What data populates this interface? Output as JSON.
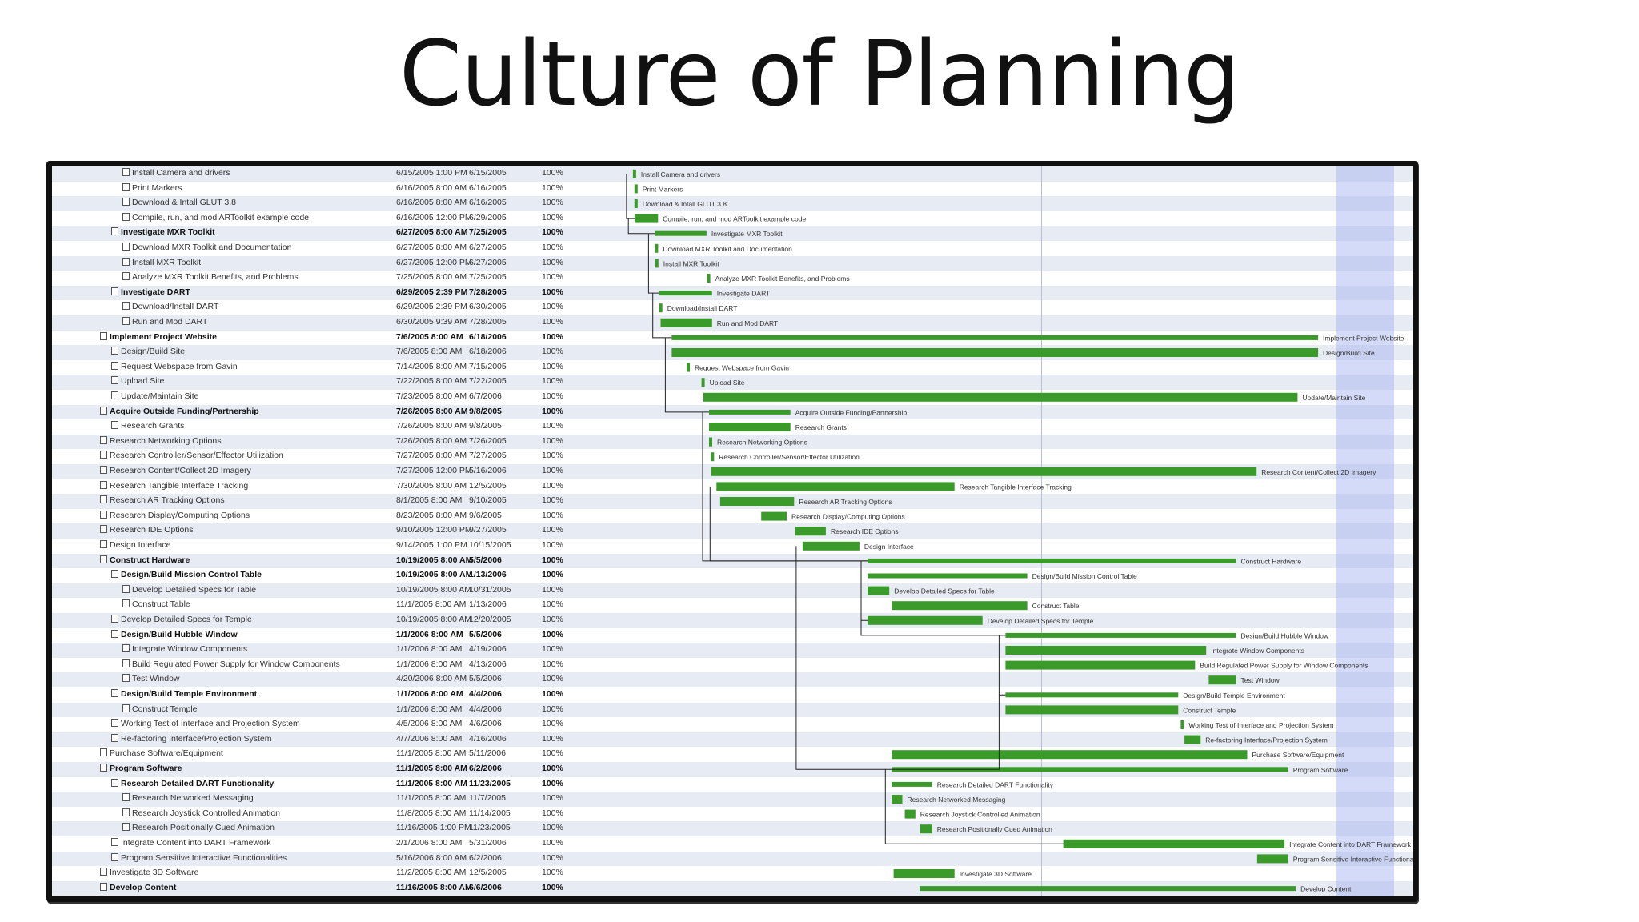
{
  "slide": {
    "title": "Culture of Planning"
  },
  "colors": {
    "bar": "#3a9b2a",
    "alt_row": "#e7ebf3",
    "highlight": "#a0aff0"
  },
  "tasks": [
    {
      "name": "Install Camera and drivers",
      "start": "6/15/2005 1:00 PM",
      "finish": "6/15/2005",
      "pct": "100%",
      "level": 2,
      "bold": false
    },
    {
      "name": "Print Markers",
      "start": "6/16/2005 8:00 AM",
      "finish": "6/16/2005",
      "pct": "100%",
      "level": 2,
      "bold": false
    },
    {
      "name": "Download & Intall GLUT 3.8",
      "start": "6/16/2005 8:00 AM",
      "finish": "6/16/2005",
      "pct": "100%",
      "level": 2,
      "bold": false
    },
    {
      "name": "Compile, run, and mod ARToolkit example code",
      "start": "6/16/2005 12:00 PM",
      "finish": "6/29/2005",
      "pct": "100%",
      "level": 2,
      "bold": false
    },
    {
      "name": "Investigate MXR Toolkit",
      "start": "6/27/2005 8:00 AM",
      "finish": "7/25/2005",
      "pct": "100%",
      "level": 1,
      "bold": true
    },
    {
      "name": "Download MXR Toolkit and Documentation",
      "start": "6/27/2005 8:00 AM",
      "finish": "6/27/2005",
      "pct": "100%",
      "level": 2,
      "bold": false
    },
    {
      "name": "Install MXR Toolkit",
      "start": "6/27/2005 12:00 PM",
      "finish": "6/27/2005",
      "pct": "100%",
      "level": 2,
      "bold": false
    },
    {
      "name": "Analyze MXR Toolkit Benefits, and Problems",
      "start": "7/25/2005 8:00 AM",
      "finish": "7/25/2005",
      "pct": "100%",
      "level": 2,
      "bold": false
    },
    {
      "name": "Investigate DART",
      "start": "6/29/2005 2:39 PM",
      "finish": "7/28/2005",
      "pct": "100%",
      "level": 1,
      "bold": true
    },
    {
      "name": "Download/Install DART",
      "start": "6/29/2005 2:39 PM",
      "finish": "6/30/2005",
      "pct": "100%",
      "level": 2,
      "bold": false
    },
    {
      "name": "Run and Mod DART",
      "start": "6/30/2005 9:39 AM",
      "finish": "7/28/2005",
      "pct": "100%",
      "level": 2,
      "bold": false
    },
    {
      "name": "Implement Project Website",
      "start": "7/6/2005 8:00 AM",
      "finish": "6/18/2006",
      "pct": "100%",
      "level": 0,
      "bold": true
    },
    {
      "name": "Design/Build Site",
      "start": "7/6/2005 8:00 AM",
      "finish": "6/18/2006",
      "pct": "100%",
      "level": 1,
      "bold": false
    },
    {
      "name": "Request Webspace from Gavin",
      "start": "7/14/2005 8:00 AM",
      "finish": "7/15/2005",
      "pct": "100%",
      "level": 1,
      "bold": false
    },
    {
      "name": "Upload Site",
      "start": "7/22/2005 8:00 AM",
      "finish": "7/22/2005",
      "pct": "100%",
      "level": 1,
      "bold": false
    },
    {
      "name": "Update/Maintain Site",
      "start": "7/23/2005 8:00 AM",
      "finish": "6/7/2006",
      "pct": "100%",
      "level": 1,
      "bold": false
    },
    {
      "name": "Acquire Outside Funding/Partnership",
      "start": "7/26/2005 8:00 AM",
      "finish": "9/8/2005",
      "pct": "100%",
      "level": 0,
      "bold": true
    },
    {
      "name": "Research Grants",
      "start": "7/26/2005 8:00 AM",
      "finish": "9/8/2005",
      "pct": "100%",
      "level": 1,
      "bold": false
    },
    {
      "name": "Research Networking Options",
      "start": "7/26/2005 8:00 AM",
      "finish": "7/26/2005",
      "pct": "100%",
      "level": 0,
      "bold": false
    },
    {
      "name": "Research Controller/Sensor/Effector Utilization",
      "start": "7/27/2005 8:00 AM",
      "finish": "7/27/2005",
      "pct": "100%",
      "level": 0,
      "bold": false
    },
    {
      "name": "Research Content/Collect 2D Imagery",
      "start": "7/27/2005 12:00 PM",
      "finish": "5/16/2006",
      "pct": "100%",
      "level": 0,
      "bold": false
    },
    {
      "name": "Research Tangible Interface Tracking",
      "start": "7/30/2005 8:00 AM",
      "finish": "12/5/2005",
      "pct": "100%",
      "level": 0,
      "bold": false
    },
    {
      "name": "Research AR Tracking Options",
      "start": "8/1/2005 8:00 AM",
      "finish": "9/10/2005",
      "pct": "100%",
      "level": 0,
      "bold": false
    },
    {
      "name": "Research Display/Computing Options",
      "start": "8/23/2005 8:00 AM",
      "finish": "9/6/2005",
      "pct": "100%",
      "level": 0,
      "bold": false
    },
    {
      "name": "Research IDE Options",
      "start": "9/10/2005 12:00 PM",
      "finish": "9/27/2005",
      "pct": "100%",
      "level": 0,
      "bold": false
    },
    {
      "name": "Design Interface",
      "start": "9/14/2005 1:00 PM",
      "finish": "10/15/2005",
      "pct": "100%",
      "level": 0,
      "bold": false
    },
    {
      "name": "Construct Hardware",
      "start": "10/19/2005 8:00 AM",
      "finish": "5/5/2006",
      "pct": "100%",
      "level": 0,
      "bold": true
    },
    {
      "name": "Design/Build Mission Control Table",
      "start": "10/19/2005 8:00 AM",
      "finish": "1/13/2006",
      "pct": "100%",
      "level": 1,
      "bold": true
    },
    {
      "name": "Develop Detailed Specs for Table",
      "start": "10/19/2005 8:00 AM",
      "finish": "10/31/2005",
      "pct": "100%",
      "level": 2,
      "bold": false
    },
    {
      "name": "Construct Table",
      "start": "11/1/2005 8:00 AM",
      "finish": "1/13/2006",
      "pct": "100%",
      "level": 2,
      "bold": false
    },
    {
      "name": "Develop Detailed Specs for Temple",
      "start": "10/19/2005 8:00 AM",
      "finish": "12/20/2005",
      "pct": "100%",
      "level": 1,
      "bold": false
    },
    {
      "name": "Design/Build Hubble Window",
      "start": "1/1/2006 8:00 AM",
      "finish": "5/5/2006",
      "pct": "100%",
      "level": 1,
      "bold": true
    },
    {
      "name": "Integrate Window Components",
      "start": "1/1/2006 8:00 AM",
      "finish": "4/19/2006",
      "pct": "100%",
      "level": 2,
      "bold": false
    },
    {
      "name": "Build Regulated Power Supply for Window Components",
      "start": "1/1/2006 8:00 AM",
      "finish": "4/13/2006",
      "pct": "100%",
      "level": 2,
      "bold": false
    },
    {
      "name": "Test Window",
      "start": "4/20/2006 8:00 AM",
      "finish": "5/5/2006",
      "pct": "100%",
      "level": 2,
      "bold": false
    },
    {
      "name": "Design/Build Temple Environment",
      "start": "1/1/2006 8:00 AM",
      "finish": "4/4/2006",
      "pct": "100%",
      "level": 1,
      "bold": true
    },
    {
      "name": "Construct Temple",
      "start": "1/1/2006 8:00 AM",
      "finish": "4/4/2006",
      "pct": "100%",
      "level": 2,
      "bold": false
    },
    {
      "name": "Working Test of Interface and Projection System",
      "start": "4/5/2006 8:00 AM",
      "finish": "4/6/2006",
      "pct": "100%",
      "level": 1,
      "bold": false
    },
    {
      "name": "Re-factoring Interface/Projection System",
      "start": "4/7/2006 8:00 AM",
      "finish": "4/16/2006",
      "pct": "100%",
      "level": 1,
      "bold": false
    },
    {
      "name": "Purchase Software/Equipment",
      "start": "11/1/2005 8:00 AM",
      "finish": "5/11/2006",
      "pct": "100%",
      "level": 0,
      "bold": false
    },
    {
      "name": "Program Software",
      "start": "11/1/2005 8:00 AM",
      "finish": "6/2/2006",
      "pct": "100%",
      "level": 0,
      "bold": true
    },
    {
      "name": "Research Detailed DART Functionality",
      "start": "11/1/2005 8:00 AM",
      "finish": "11/23/2005",
      "pct": "100%",
      "level": 1,
      "bold": true
    },
    {
      "name": "Research Networked Messaging",
      "start": "11/1/2005 8:00 AM",
      "finish": "11/7/2005",
      "pct": "100%",
      "level": 2,
      "bold": false
    },
    {
      "name": "Research Joystick Controlled Animation",
      "start": "11/8/2005 8:00 AM",
      "finish": "11/14/2005",
      "pct": "100%",
      "level": 2,
      "bold": false
    },
    {
      "name": "Research Positionally Cued Animation",
      "start": "11/16/2005 1:00 PM",
      "finish": "11/23/2005",
      "pct": "100%",
      "level": 2,
      "bold": false
    },
    {
      "name": "Integrate Content into DART Framework",
      "start": "2/1/2006 8:00 AM",
      "finish": "5/31/2006",
      "pct": "100%",
      "level": 1,
      "bold": false
    },
    {
      "name": "Program Sensitive Interactive Functionalities",
      "start": "5/16/2006 8:00 AM",
      "finish": "6/2/2006",
      "pct": "100%",
      "level": 1,
      "bold": false
    },
    {
      "name": "Investigate 3D Software",
      "start": "11/2/2005 8:00 AM",
      "finish": "12/5/2005",
      "pct": "100%",
      "level": 0,
      "bold": false
    },
    {
      "name": "Develop Content",
      "start": "11/16/2005 8:00 AM",
      "finish": "6/6/2006",
      "pct": "100%",
      "level": 0,
      "bold": true
    }
  ],
  "chart_data": {
    "type": "gantt",
    "title": "Culture of Planning",
    "axis_start": "6/13/2005",
    "axis_end": "6/30/2006"
  }
}
